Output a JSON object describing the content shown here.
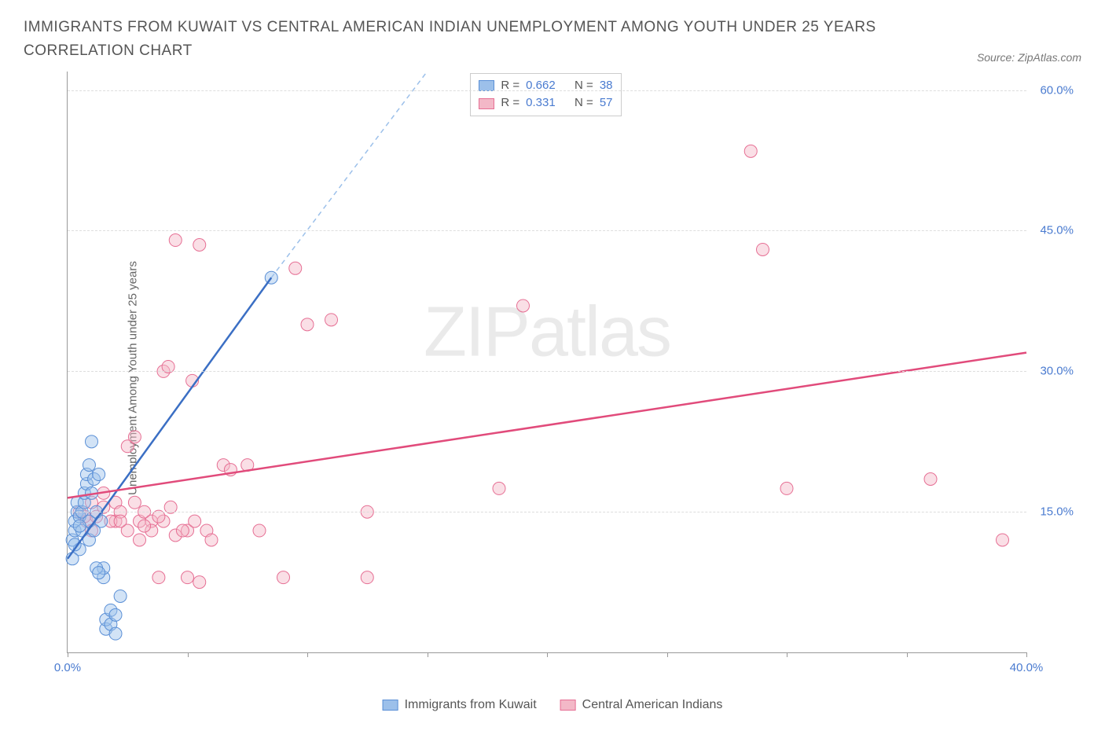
{
  "title": "IMMIGRANTS FROM KUWAIT VS CENTRAL AMERICAN INDIAN UNEMPLOYMENT AMONG YOUTH UNDER 25 YEARS CORRELATION CHART",
  "source_label": "Source: ZipAtlas.com",
  "y_axis_label": "Unemployment Among Youth under 25 years",
  "watermark_a": "ZIP",
  "watermark_b": "atlas",
  "chart": {
    "type": "scatter",
    "xlim": [
      0,
      40
    ],
    "ylim": [
      0,
      62
    ],
    "xtick_positions": [
      0,
      5,
      10,
      15,
      20,
      25,
      30,
      35,
      40
    ],
    "xtick_labels": {
      "0": "0.0%",
      "40": "40.0%"
    },
    "ytick_positions": [
      15,
      30,
      45,
      60
    ],
    "ytick_labels": [
      "15.0%",
      "30.0%",
      "45.0%",
      "60.0%"
    ],
    "grid_color": "#dddddd",
    "background_color": "#ffffff",
    "axis_color": "#999999",
    "tick_label_color": "#4a7bd0",
    "marker_radius": 8,
    "marker_opacity": 0.45,
    "series": [
      {
        "name": "Immigrants from Kuwait",
        "fill": "#9cc0ea",
        "stroke": "#5a8fd6",
        "line_color": "#3b6fc4",
        "dash_color": "#9cc0ea",
        "R": "0.662",
        "N": "38",
        "trend": {
          "x1": 0,
          "y1": 10,
          "x2": 8.5,
          "y2": 40
        },
        "trend_dash": {
          "x1": 8.5,
          "y1": 40,
          "x2": 15,
          "y2": 62
        },
        "points": [
          [
            0.2,
            12
          ],
          [
            0.3,
            13
          ],
          [
            0.3,
            14
          ],
          [
            0.4,
            15
          ],
          [
            0.4,
            16
          ],
          [
            0.5,
            14.5
          ],
          [
            0.6,
            13
          ],
          [
            0.6,
            15
          ],
          [
            0.7,
            16
          ],
          [
            0.7,
            17
          ],
          [
            0.8,
            18
          ],
          [
            0.8,
            19
          ],
          [
            0.9,
            20
          ],
          [
            0.9,
            14
          ],
          [
            1.0,
            17
          ],
          [
            1.0,
            22.5
          ],
          [
            1.1,
            18.5
          ],
          [
            1.2,
            15
          ],
          [
            1.3,
            19
          ],
          [
            1.4,
            14
          ],
          [
            1.5,
            8
          ],
          [
            1.5,
            9
          ],
          [
            1.6,
            2.5
          ],
          [
            1.6,
            3.5
          ],
          [
            1.8,
            3
          ],
          [
            1.8,
            4.5
          ],
          [
            2.0,
            2
          ],
          [
            2.0,
            4
          ],
          [
            2.2,
            6
          ],
          [
            1.2,
            9
          ],
          [
            1.3,
            8.5
          ],
          [
            0.5,
            11
          ],
          [
            0.3,
            11.5
          ],
          [
            0.2,
            10
          ],
          [
            8.5,
            40
          ],
          [
            0.9,
            12
          ],
          [
            1.1,
            13
          ],
          [
            0.5,
            13.5
          ]
        ]
      },
      {
        "name": "Central American Indians",
        "fill": "#f3b8c7",
        "stroke": "#e66f94",
        "line_color": "#e14b7b",
        "R": "0.331",
        "N": "57",
        "trend": {
          "x1": 0,
          "y1": 16.5,
          "x2": 40,
          "y2": 32
        },
        "points": [
          [
            0.5,
            15
          ],
          [
            0.8,
            14
          ],
          [
            1.0,
            16
          ],
          [
            1.2,
            14.5
          ],
          [
            1.5,
            17
          ],
          [
            1.5,
            15.5
          ],
          [
            2.0,
            14
          ],
          [
            2.0,
            16
          ],
          [
            2.2,
            15
          ],
          [
            2.5,
            22
          ],
          [
            2.5,
            13
          ],
          [
            2.8,
            23
          ],
          [
            3.0,
            14
          ],
          [
            3.0,
            12
          ],
          [
            3.2,
            15
          ],
          [
            3.5,
            14
          ],
          [
            3.5,
            13
          ],
          [
            3.8,
            8
          ],
          [
            4.0,
            30
          ],
          [
            4.0,
            14
          ],
          [
            4.2,
            30.5
          ],
          [
            4.5,
            12.5
          ],
          [
            4.5,
            44
          ],
          [
            5.0,
            8
          ],
          [
            5.0,
            13
          ],
          [
            5.2,
            29
          ],
          [
            5.5,
            7.5
          ],
          [
            5.8,
            13
          ],
          [
            5.5,
            43.5
          ],
          [
            6.0,
            12
          ],
          [
            6.5,
            20
          ],
          [
            6.8,
            19.5
          ],
          [
            7.5,
            20
          ],
          [
            8.0,
            13
          ],
          [
            9.0,
            8
          ],
          [
            9.5,
            41
          ],
          [
            10.0,
            35
          ],
          [
            11.0,
            35.5
          ],
          [
            12.5,
            15
          ],
          [
            12.5,
            8
          ],
          [
            18.0,
            17.5
          ],
          [
            19.0,
            37
          ],
          [
            28.5,
            53.5
          ],
          [
            29.0,
            43
          ],
          [
            30.0,
            17.5
          ],
          [
            36.0,
            18.5
          ],
          [
            39.0,
            12
          ],
          [
            1.8,
            14
          ],
          [
            2.2,
            14
          ],
          [
            2.8,
            16
          ],
          [
            3.2,
            13.5
          ],
          [
            3.8,
            14.5
          ],
          [
            4.3,
            15.5
          ],
          [
            4.8,
            13
          ],
          [
            5.3,
            14
          ],
          [
            1.0,
            13
          ],
          [
            0.7,
            14.5
          ]
        ]
      }
    ]
  },
  "legend_top": {
    "R_label": "R =",
    "N_label": "N ="
  },
  "legend_bottom": {
    "s1": "Immigrants from Kuwait",
    "s2": "Central American Indians"
  }
}
